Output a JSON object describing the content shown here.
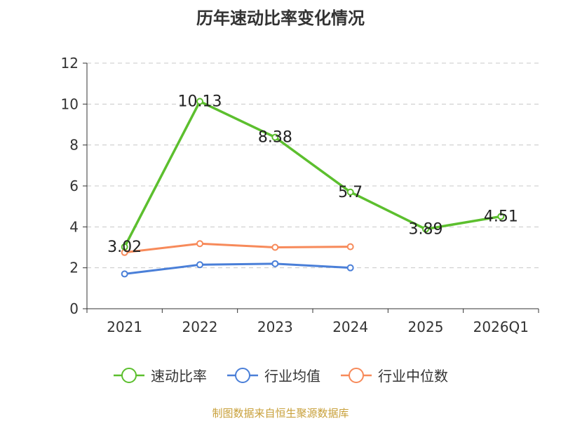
{
  "chart_data": {
    "type": "line",
    "title": "历年速动比率变化情况",
    "categories": [
      "2021",
      "2022",
      "2023",
      "2024",
      "2025",
      "2026Q1"
    ],
    "ylim": [
      0,
      12
    ],
    "yticks": [
      0,
      2,
      4,
      6,
      8,
      10,
      12
    ],
    "grid": true,
    "legend_position": "bottom",
    "series": [
      {
        "name": "速动比率",
        "color": "#5cbf2e",
        "values": [
          3.02,
          10.13,
          8.38,
          5.7,
          3.89,
          4.51
        ],
        "labels": [
          "3.02",
          "10.13",
          "8.38",
          "5.7",
          "3.89",
          "4.51"
        ]
      },
      {
        "name": "行业均值",
        "color": "#4a7fd8",
        "values": [
          1.7,
          2.15,
          2.2,
          2.0,
          null,
          null
        ]
      },
      {
        "name": "行业中位数",
        "color": "#f78a5a",
        "values": [
          2.75,
          3.18,
          3.0,
          3.03,
          null,
          null
        ]
      }
    ]
  },
  "footer": {
    "source": "制图数据来自恒生聚源数据库"
  }
}
